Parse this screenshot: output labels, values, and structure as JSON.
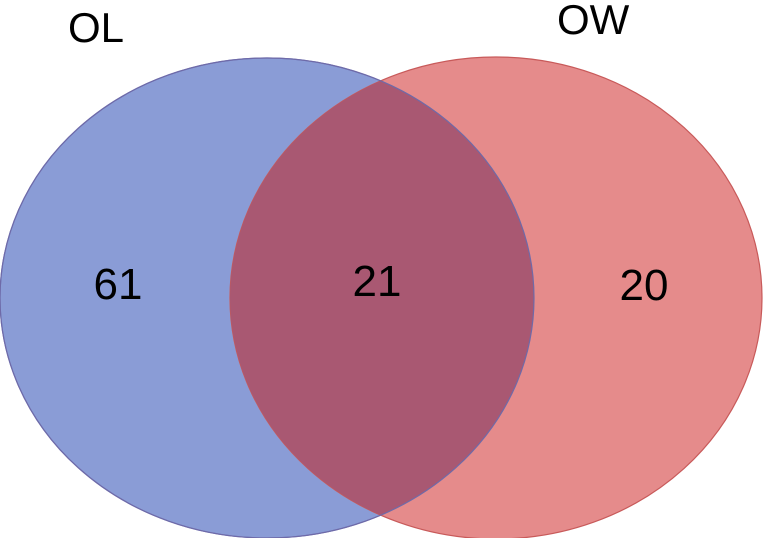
{
  "venn": {
    "sets": [
      {
        "name": "OL",
        "fill": "#8a9cd6",
        "stroke": "#6f80c0"
      },
      {
        "name": "OW",
        "fill": "#de5a5a",
        "stroke": "#c85a5a"
      }
    ],
    "intersection_fill": "#a95872",
    "counts": {
      "ol_only": "61",
      "both": "21",
      "ow_only": "20"
    }
  }
}
